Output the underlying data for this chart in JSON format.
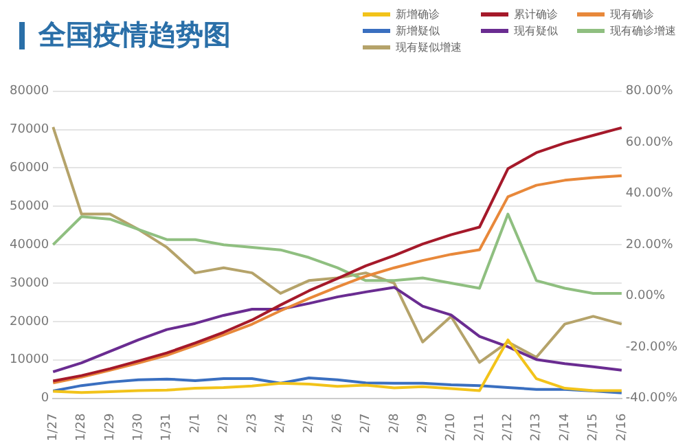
{
  "chart_data": {
    "type": "line",
    "title": "全国疫情趋势图",
    "categories": [
      "1/27",
      "1/28",
      "1/29",
      "1/30",
      "1/31",
      "2/1",
      "2/2",
      "2/3",
      "2/4",
      "2/5",
      "2/6",
      "2/7",
      "2/8",
      "2/9",
      "2/10",
      "2/11",
      "2/12",
      "2/13",
      "2/14",
      "2/15",
      "2/16"
    ],
    "series": [
      {
        "name": "新增确诊",
        "color": "#f2c31a",
        "values": [
          1800,
          1500,
          1700,
          2000,
          2100,
          2600,
          2800,
          3200,
          3900,
          3700,
          3100,
          3400,
          2700,
          3000,
          2500,
          2000,
          15200,
          5100,
          2600,
          2000,
          2000
        ]
      },
      {
        "name": "累计确诊",
        "color": "#a5192a",
        "values": [
          4500,
          5900,
          7700,
          9700,
          11800,
          14400,
          17200,
          20400,
          24300,
          28000,
          31200,
          34500,
          37200,
          40200,
          42600,
          44600,
          59800,
          64000,
          66500,
          68500,
          70500
        ]
      },
      {
        "name": "现有确诊",
        "color": "#e8883a",
        "values": [
          4000,
          5500,
          7300,
          9200,
          11200,
          13800,
          16500,
          19300,
          22800,
          26000,
          29000,
          31800,
          34000,
          35900,
          37500,
          38700,
          52500,
          55500,
          56800,
          57500,
          58000
        ]
      },
      {
        "name": "新增疑似",
        "color": "#3a6fc0",
        "values": [
          1900,
          3300,
          4200,
          4800,
          5000,
          4600,
          5100,
          5100,
          3900,
          5300,
          4800,
          4000,
          3900,
          3900,
          3500,
          3300,
          2800,
          2300,
          2300,
          1900,
          1400
        ]
      },
      {
        "name": "现有疑似",
        "color": "#6a2c91",
        "values": [
          6900,
          9200,
          12200,
          15200,
          17900,
          19500,
          21600,
          23200,
          23200,
          24700,
          26400,
          27700,
          28900,
          24000,
          21700,
          16100,
          13400,
          10100,
          9000,
          8200,
          7300
        ]
      },
      {
        "name": "现有确诊增速",
        "color": "#8fbf80",
        "axis": "y2",
        "values": [
          20,
          31,
          30,
          26,
          22,
          22,
          20,
          19,
          18,
          15,
          11,
          6,
          6,
          7,
          5,
          3,
          32,
          6,
          3,
          1,
          1
        ]
      },
      {
        "name": "现有疑似增速",
        "color": "#b5a36a",
        "axis": "y2",
        "values": [
          66,
          32,
          32,
          26,
          19,
          9,
          11,
          9,
          1,
          6,
          7,
          9,
          5,
          -18,
          -8,
          -26,
          -18,
          -24,
          -11,
          -8,
          -11
        ]
      }
    ],
    "ylim": [
      0,
      80000
    ],
    "yticks": [
      0,
      10000,
      20000,
      30000,
      40000,
      50000,
      60000,
      70000,
      80000
    ],
    "y2lim": [
      -40,
      80
    ],
    "y2ticks": [
      {
        "value": -40,
        "label": "-40.00%"
      },
      {
        "value": -20,
        "label": "-20.00%"
      },
      {
        "value": 0,
        "label": "0.00%"
      },
      {
        "value": 20,
        "label": "20.00%"
      },
      {
        "value": 40,
        "label": "40.00%"
      },
      {
        "value": 60,
        "label": "60.00%"
      },
      {
        "value": 80,
        "label": "80.00%"
      }
    ],
    "grid": "y",
    "legend": "top right",
    "marker": "none",
    "line_style": "solid"
  }
}
